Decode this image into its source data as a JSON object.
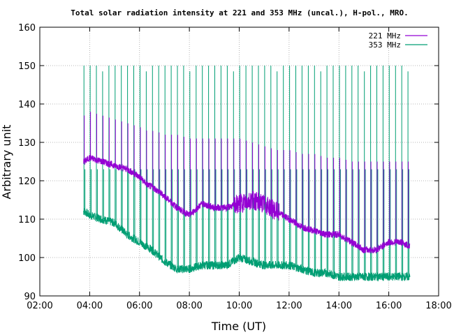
{
  "chart_data": {
    "type": "line",
    "title": "Total solar radiation intensity at 221 and 353 MHz (uncal.), H-pol., MRO.",
    "xlabel": "Time (UT)",
    "ylabel": "Arbitrary unit",
    "xlim": [
      2,
      18
    ],
    "ylim": [
      90,
      160
    ],
    "x_ticks": [
      "02:00",
      "04:00",
      "06:00",
      "08:00",
      "10:00",
      "12:00",
      "14:00",
      "16:00",
      "18:00"
    ],
    "y_ticks": [
      "90",
      "100",
      "110",
      "120",
      "130",
      "140",
      "150",
      "160"
    ],
    "grid": true,
    "legend_position": "top-right",
    "series": [
      {
        "name": "221 MHz",
        "color": "#9400d3",
        "baseline_x": [
          3.8,
          4.0,
          4.5,
          5.0,
          5.5,
          6.0,
          6.3,
          6.6,
          7.0,
          7.5,
          8.0,
          8.5,
          9.0,
          9.5,
          10.0,
          10.5,
          11.0,
          11.5,
          12.0,
          12.5,
          13.0,
          13.5,
          14.0,
          14.5,
          15.0,
          15.5,
          16.0,
          16.5,
          16.8
        ],
        "baseline_y": [
          125,
          126,
          125,
          124,
          123,
          121,
          119,
          118,
          116,
          113,
          111,
          114,
          113,
          113,
          114,
          115,
          114,
          112,
          110,
          108,
          107,
          106,
          106,
          104,
          102,
          102,
          104,
          104,
          103
        ],
        "peaks_y": [
          137,
          138,
          137,
          136,
          135,
          134,
          133,
          133,
          132,
          132,
          131,
          131,
          131,
          131,
          131,
          130,
          129,
          128,
          128,
          127,
          127,
          126,
          126,
          125,
          125,
          125,
          125,
          125,
          125
        ]
      },
      {
        "name": "353 MHz",
        "color": "#009e73",
        "baseline_x": [
          3.8,
          4.0,
          4.5,
          5.0,
          5.5,
          6.0,
          6.5,
          7.0,
          7.5,
          8.0,
          8.5,
          9.0,
          9.5,
          10.0,
          10.5,
          11.0,
          11.5,
          12.0,
          12.5,
          13.0,
          13.5,
          14.0,
          14.5,
          15.0,
          15.5,
          16.0,
          16.5,
          16.8
        ],
        "baseline_y": [
          112,
          111,
          110,
          109,
          106,
          104,
          102,
          99,
          97,
          97,
          98,
          98,
          98,
          100,
          99,
          98,
          98,
          98,
          97,
          96,
          96,
          95,
          95,
          95,
          95,
          95,
          95,
          95
        ],
        "spike_level": 150,
        "plateau_level": 123
      }
    ]
  }
}
